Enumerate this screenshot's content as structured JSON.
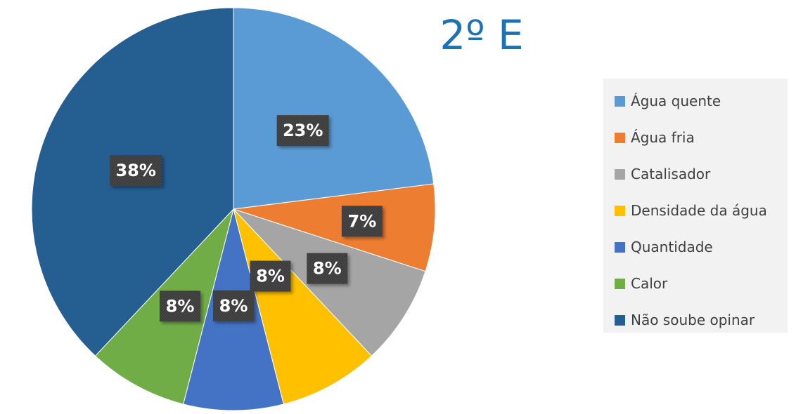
{
  "chart_data": {
    "type": "pie",
    "title": "2º E",
    "categories": [
      "Água quente",
      "Água fria",
      "Catalisador",
      "Densidade da água",
      "Quantidade",
      "Calor",
      "Não soube opinar"
    ],
    "values": [
      23,
      7,
      8,
      8,
      8,
      8,
      38
    ],
    "data_labels": [
      "23%",
      "7%",
      "8%",
      "8%",
      "8%",
      "8%",
      "38%"
    ],
    "colors": [
      "#5b9bd5",
      "#ed7d31",
      "#a5a5a5",
      "#ffc000",
      "#4472c4",
      "#70ad47",
      "#255e91"
    ],
    "legend_position": "right",
    "start_angle": "12 o'clock",
    "direction": "clockwise"
  }
}
